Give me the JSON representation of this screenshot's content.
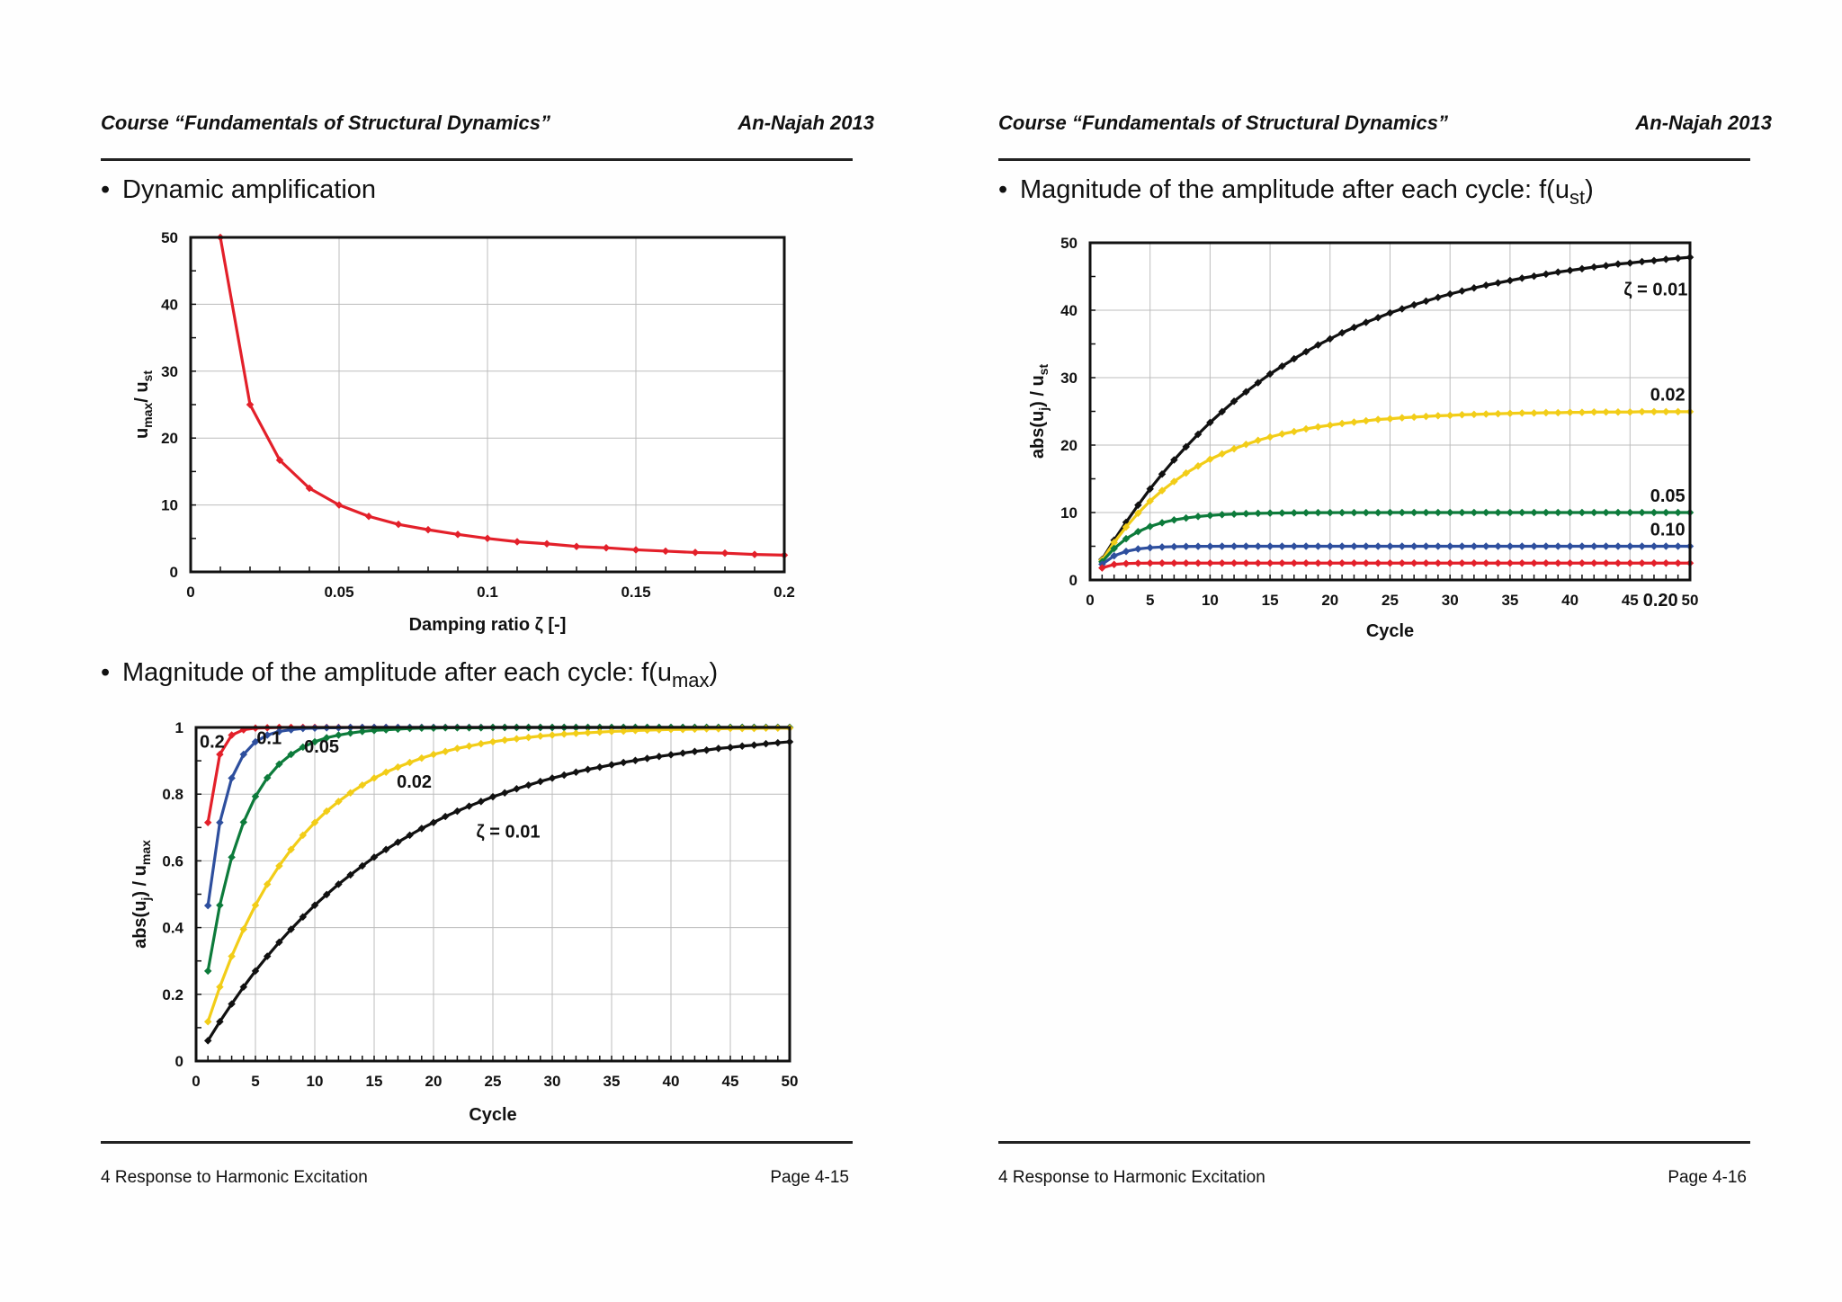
{
  "pages": [
    {
      "header_left": "Course “Fundamentals of Structural Dynamics”",
      "header_right": "An-Najah 2013",
      "footer_left": "4 Response to Harmonic Excitation",
      "footer_right": "Page 4-15",
      "bullets": [
        {
          "text": "Dynamic amplification"
        },
        {
          "text": "Magnitude of the amplitude after each cycle: f(u",
          "sub": "max",
          "suffix": ")"
        }
      ]
    },
    {
      "header_left": "Course “Fundamentals of Structural Dynamics”",
      "header_right": "An-Najah 2013",
      "footer_left": "4 Response to Harmonic Excitation",
      "footer_right": "Page 4-16",
      "bullets": [
        {
          "text": "Magnitude of the amplitude after each cycle: f(u",
          "sub": "st",
          "suffix": ")"
        }
      ]
    }
  ],
  "colors": {
    "red": "#e3202a",
    "blue": "#2e4f9e",
    "green": "#0d7b3b",
    "yellow": "#f2cd18",
    "black": "#111111"
  },
  "chart_data": [
    {
      "type": "line",
      "title": "",
      "xlabel": "Damping ratio ζ [-]",
      "ylabel": "u_max / u_st",
      "xlim": [
        0,
        0.2
      ],
      "ylim": [
        0,
        50
      ],
      "xticks": [
        "0",
        "0.05",
        "0.1",
        "0.15",
        "0.2"
      ],
      "yticks": [
        "0",
        "10",
        "20",
        "30",
        "40",
        "50"
      ],
      "grid": true,
      "series": [
        {
          "color": "red",
          "x": [
            0.01,
            0.02,
            0.03,
            0.04,
            0.05,
            0.06,
            0.07,
            0.08,
            0.09,
            0.1,
            0.11,
            0.12,
            0.13,
            0.14,
            0.15,
            0.16,
            0.17,
            0.18,
            0.19,
            0.2
          ],
          "values": [
            50,
            25,
            16.7,
            12.5,
            10,
            8.3,
            7.1,
            6.3,
            5.6,
            5,
            4.5,
            4.2,
            3.8,
            3.6,
            3.3,
            3.1,
            2.9,
            2.8,
            2.6,
            2.5
          ]
        }
      ]
    },
    {
      "type": "line",
      "title": "",
      "xlabel": "Cycle",
      "ylabel": "abs(u_j) / u_max",
      "xlim": [
        0,
        50
      ],
      "ylim": [
        0,
        1
      ],
      "xticks": [
        "0",
        "5",
        "10",
        "15",
        "20",
        "25",
        "30",
        "35",
        "40",
        "45",
        "50"
      ],
      "yticks": [
        "0",
        "0.2",
        "0.4",
        "0.6",
        "0.8",
        "1"
      ],
      "grid": true,
      "x": [
        1,
        2,
        3,
        4,
        5,
        6,
        7,
        8,
        9,
        10,
        11,
        12,
        13,
        14,
        15,
        16,
        17,
        18,
        19,
        20,
        21,
        22,
        23,
        24,
        25,
        26,
        27,
        28,
        29,
        30,
        31,
        32,
        33,
        34,
        35,
        36,
        37,
        38,
        39,
        40,
        41,
        42,
        43,
        44,
        45,
        46,
        47,
        48,
        49,
        50
      ],
      "series": [
        {
          "name": "0.2",
          "zeta": 0.2,
          "color": "red",
          "values": [
            0.715,
            0.919,
            0.977,
            0.993,
            0.998,
            0.999,
            1,
            1,
            1,
            1,
            1,
            1,
            1,
            1,
            1,
            1,
            1,
            1,
            1,
            1,
            1,
            1,
            1,
            1,
            1,
            1,
            1,
            1,
            1,
            1,
            1,
            1,
            1,
            1,
            1,
            1,
            1,
            1,
            1,
            1,
            1,
            1,
            1,
            1,
            1,
            1,
            1,
            1,
            1,
            1
          ]
        },
        {
          "name": "0.1",
          "zeta": 0.1,
          "color": "blue",
          "values": [
            0.466,
            0.715,
            0.848,
            0.919,
            0.957,
            0.977,
            0.988,
            0.993,
            0.997,
            0.998,
            0.999,
            0.999,
            1,
            1,
            1,
            1,
            1,
            1,
            1,
            1,
            1,
            1,
            1,
            1,
            1,
            1,
            1,
            1,
            1,
            1,
            1,
            1,
            1,
            1,
            1,
            1,
            1,
            1,
            1,
            1,
            1,
            1,
            1,
            1,
            1,
            1,
            1,
            1,
            1,
            1
          ]
        },
        {
          "name": "0.05",
          "zeta": 0.05,
          "color": "green",
          "values": [
            0.27,
            0.467,
            0.611,
            0.716,
            0.793,
            0.849,
            0.89,
            0.919,
            0.941,
            0.957,
            0.969,
            0.977,
            0.983,
            0.988,
            0.991,
            0.993,
            0.995,
            0.997,
            0.998,
            0.998,
            0.999,
            0.999,
            0.999,
            0.999,
            1,
            1,
            1,
            1,
            1,
            1,
            1,
            1,
            1,
            1,
            1,
            1,
            1,
            1,
            1,
            1,
            1,
            1,
            1,
            1,
            1,
            1,
            1,
            1,
            1,
            1
          ]
        },
        {
          "name": "0.02",
          "zeta": 0.02,
          "color": "yellow",
          "values": [
            0.118,
            0.222,
            0.314,
            0.395,
            0.467,
            0.53,
            0.585,
            0.634,
            0.677,
            0.715,
            0.749,
            0.778,
            0.804,
            0.827,
            0.848,
            0.866,
            0.881,
            0.895,
            0.908,
            0.919,
            0.928,
            0.937,
            0.944,
            0.951,
            0.957,
            0.962,
            0.966,
            0.97,
            0.974,
            0.977,
            0.98,
            0.982,
            0.984,
            0.986,
            0.988,
            0.989,
            0.991,
            0.992,
            0.993,
            0.994,
            0.994,
            0.995,
            0.996,
            0.996,
            0.997,
            0.997,
            0.997,
            0.998,
            0.998,
            0.998
          ]
        },
        {
          "name": "ζ = 0.01",
          "zeta": 0.01,
          "color": "black",
          "values": [
            0.061,
            0.118,
            0.171,
            0.222,
            0.27,
            0.314,
            0.356,
            0.395,
            0.432,
            0.467,
            0.499,
            0.53,
            0.558,
            0.585,
            0.611,
            0.634,
            0.656,
            0.677,
            0.697,
            0.715,
            0.733,
            0.749,
            0.764,
            0.778,
            0.792,
            0.804,
            0.816,
            0.827,
            0.838,
            0.848,
            0.857,
            0.866,
            0.874,
            0.881,
            0.888,
            0.895,
            0.901,
            0.907,
            0.913,
            0.918,
            0.923,
            0.928,
            0.932,
            0.937,
            0.94,
            0.944,
            0.947,
            0.951,
            0.954,
            0.957
          ]
        }
      ]
    },
    {
      "type": "line",
      "title": "",
      "xlabel": "Cycle",
      "ylabel": "abs(u_j) / u_st",
      "xlim": [
        0,
        50
      ],
      "ylim": [
        0,
        50
      ],
      "xticks": [
        "0",
        "5",
        "10",
        "15",
        "20",
        "25",
        "30",
        "35",
        "40",
        "45",
        "50"
      ],
      "yticks": [
        "0",
        "10",
        "20",
        "30",
        "40",
        "50"
      ],
      "grid": true,
      "x": [
        1,
        2,
        3,
        4,
        5,
        6,
        7,
        8,
        9,
        10,
        11,
        12,
        13,
        14,
        15,
        16,
        17,
        18,
        19,
        20,
        21,
        22,
        23,
        24,
        25,
        26,
        27,
        28,
        29,
        30,
        31,
        32,
        33,
        34,
        35,
        36,
        37,
        38,
        39,
        40,
        41,
        42,
        43,
        44,
        45,
        46,
        47,
        48,
        49,
        50
      ],
      "series": [
        {
          "name": "ζ = 0.01",
          "zeta": 0.01,
          "color": "black",
          "values": [
            3.05,
            5.9,
            8.55,
            11.1,
            13.5,
            15.7,
            17.8,
            19.75,
            21.6,
            23.35,
            24.95,
            26.5,
            27.9,
            29.25,
            30.55,
            31.7,
            32.8,
            33.85,
            34.85,
            35.75,
            36.65,
            37.45,
            38.2,
            38.9,
            39.6,
            40.2,
            40.8,
            41.35,
            41.9,
            42.4,
            42.85,
            43.3,
            43.7,
            44.05,
            44.4,
            44.75,
            45.05,
            45.35,
            45.65,
            45.9,
            46.15,
            46.4,
            46.6,
            46.85,
            47,
            47.2,
            47.35,
            47.55,
            47.7,
            47.85
          ]
        },
        {
          "name": "0.02",
          "zeta": 0.02,
          "color": "yellow",
          "values": [
            2.95,
            5.55,
            7.85,
            9.9,
            11.7,
            13.25,
            14.6,
            15.85,
            16.9,
            17.9,
            18.7,
            19.45,
            20.1,
            20.7,
            21.2,
            21.65,
            22,
            22.4,
            22.7,
            22.95,
            23.2,
            23.4,
            23.6,
            23.8,
            23.9,
            24.05,
            24.15,
            24.25,
            24.35,
            24.4,
            24.5,
            24.55,
            24.6,
            24.65,
            24.7,
            24.75,
            24.75,
            24.8,
            24.8,
            24.85,
            24.85,
            24.9,
            24.9,
            24.9,
            24.9,
            24.95,
            24.95,
            24.95,
            24.95,
            24.95
          ]
        },
        {
          "name": "0.05",
          "zeta": 0.05,
          "color": "green",
          "values": [
            2.7,
            4.67,
            6.11,
            7.16,
            7.93,
            8.49,
            8.9,
            9.19,
            9.41,
            9.57,
            9.69,
            9.77,
            9.83,
            9.88,
            9.91,
            9.93,
            9.95,
            9.97,
            9.98,
            9.98,
            9.99,
            9.99,
            9.99,
            9.99,
            10,
            10,
            10,
            10,
            10,
            10,
            10,
            10,
            10,
            10,
            10,
            10,
            10,
            10,
            10,
            10,
            10,
            10,
            10,
            10,
            10,
            10,
            10,
            10,
            10,
            10
          ]
        },
        {
          "name": "0.10",
          "zeta": 0.1,
          "color": "blue",
          "values": [
            2.33,
            3.58,
            4.24,
            4.6,
            4.79,
            4.89,
            4.94,
            4.97,
            4.98,
            4.99,
            5,
            5,
            5,
            5,
            5,
            5,
            5,
            5,
            5,
            5,
            5,
            5,
            5,
            5,
            5,
            5,
            5,
            5,
            5,
            5,
            5,
            5,
            5,
            5,
            5,
            5,
            5,
            5,
            5,
            5,
            5,
            5,
            5,
            5,
            5,
            5,
            5,
            5,
            5,
            5
          ]
        },
        {
          "name": "0.20",
          "zeta": 0.2,
          "color": "red",
          "values": [
            1.79,
            2.3,
            2.44,
            2.48,
            2.5,
            2.5,
            2.5,
            2.5,
            2.5,
            2.5,
            2.5,
            2.5,
            2.5,
            2.5,
            2.5,
            2.5,
            2.5,
            2.5,
            2.5,
            2.5,
            2.5,
            2.5,
            2.5,
            2.5,
            2.5,
            2.5,
            2.5,
            2.5,
            2.5,
            2.5,
            2.5,
            2.5,
            2.5,
            2.5,
            2.5,
            2.5,
            2.5,
            2.5,
            2.5,
            2.5,
            2.5,
            2.5,
            2.5,
            2.5,
            2.5,
            2.5,
            2.5,
            2.5,
            2.5,
            2.5
          ]
        }
      ]
    }
  ]
}
